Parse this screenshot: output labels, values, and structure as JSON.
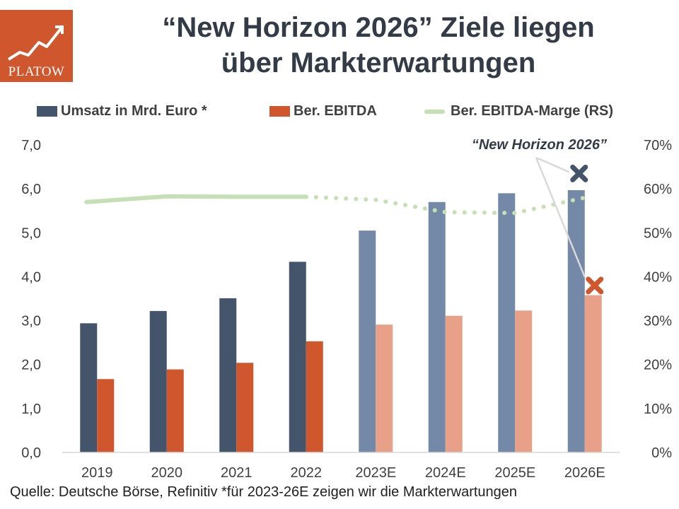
{
  "logo": {
    "text": "PLATOW"
  },
  "title": {
    "line1": "“New Horizon 2026” Ziele liegen",
    "line2": "über Markterwartungen"
  },
  "legend": {
    "revenue": "Umsatz in Mrd. Euro *",
    "ebitda": "Ber. EBITDA",
    "margin": "Ber. EBITDA-Marge (RS)"
  },
  "annotation": "“New Horizon 2026”",
  "source": "Quelle: Deutsche Börse, Refinitiv *für 2023-26E zeigen wir die Markterwartungen",
  "colors": {
    "revenue_actual": "#44546a",
    "revenue_estimate": "#7488a8",
    "ebitda_actual": "#d0562d",
    "ebitda_estimate": "#e8a188",
    "margin": "#c5e0b4",
    "target_revenue": "#44546a",
    "target_ebitda": "#d0562d"
  },
  "chart_data": {
    "type": "bar",
    "categories": [
      "2019",
      "2020",
      "2021",
      "2022",
      "2023E",
      "2024E",
      "2025E",
      "2026E"
    ],
    "estimate_from_index": 4,
    "series": [
      {
        "name": "Umsatz in Mrd. Euro *",
        "values": [
          2.94,
          3.22,
          3.51,
          4.34,
          5.05,
          5.7,
          5.9,
          5.97
        ]
      },
      {
        "name": "Ber. EBITDA",
        "values": [
          1.67,
          1.89,
          2.04,
          2.53,
          2.91,
          3.11,
          3.23,
          3.58
        ]
      },
      {
        "name": "Ber. EBITDA-Marge (RS)",
        "type": "line",
        "axis": "right",
        "values": [
          57,
          58.3,
          58.2,
          58.2,
          57.5,
          54.7,
          54.5,
          58
        ]
      }
    ],
    "targets": {
      "category": "2026E",
      "revenue": 6.35,
      "ebitda": 3.8
    },
    "ylim": [
      0,
      7
    ],
    "yticks": [
      "0,0",
      "1,0",
      "2,0",
      "3,0",
      "4,0",
      "5,0",
      "6,0",
      "7,0"
    ],
    "y2lim": [
      0,
      70
    ],
    "y2ticks": [
      "0%",
      "10%",
      "20%",
      "30%",
      "40%",
      "50%",
      "60%",
      "70%"
    ],
    "legend_position": "top",
    "grid": false
  }
}
